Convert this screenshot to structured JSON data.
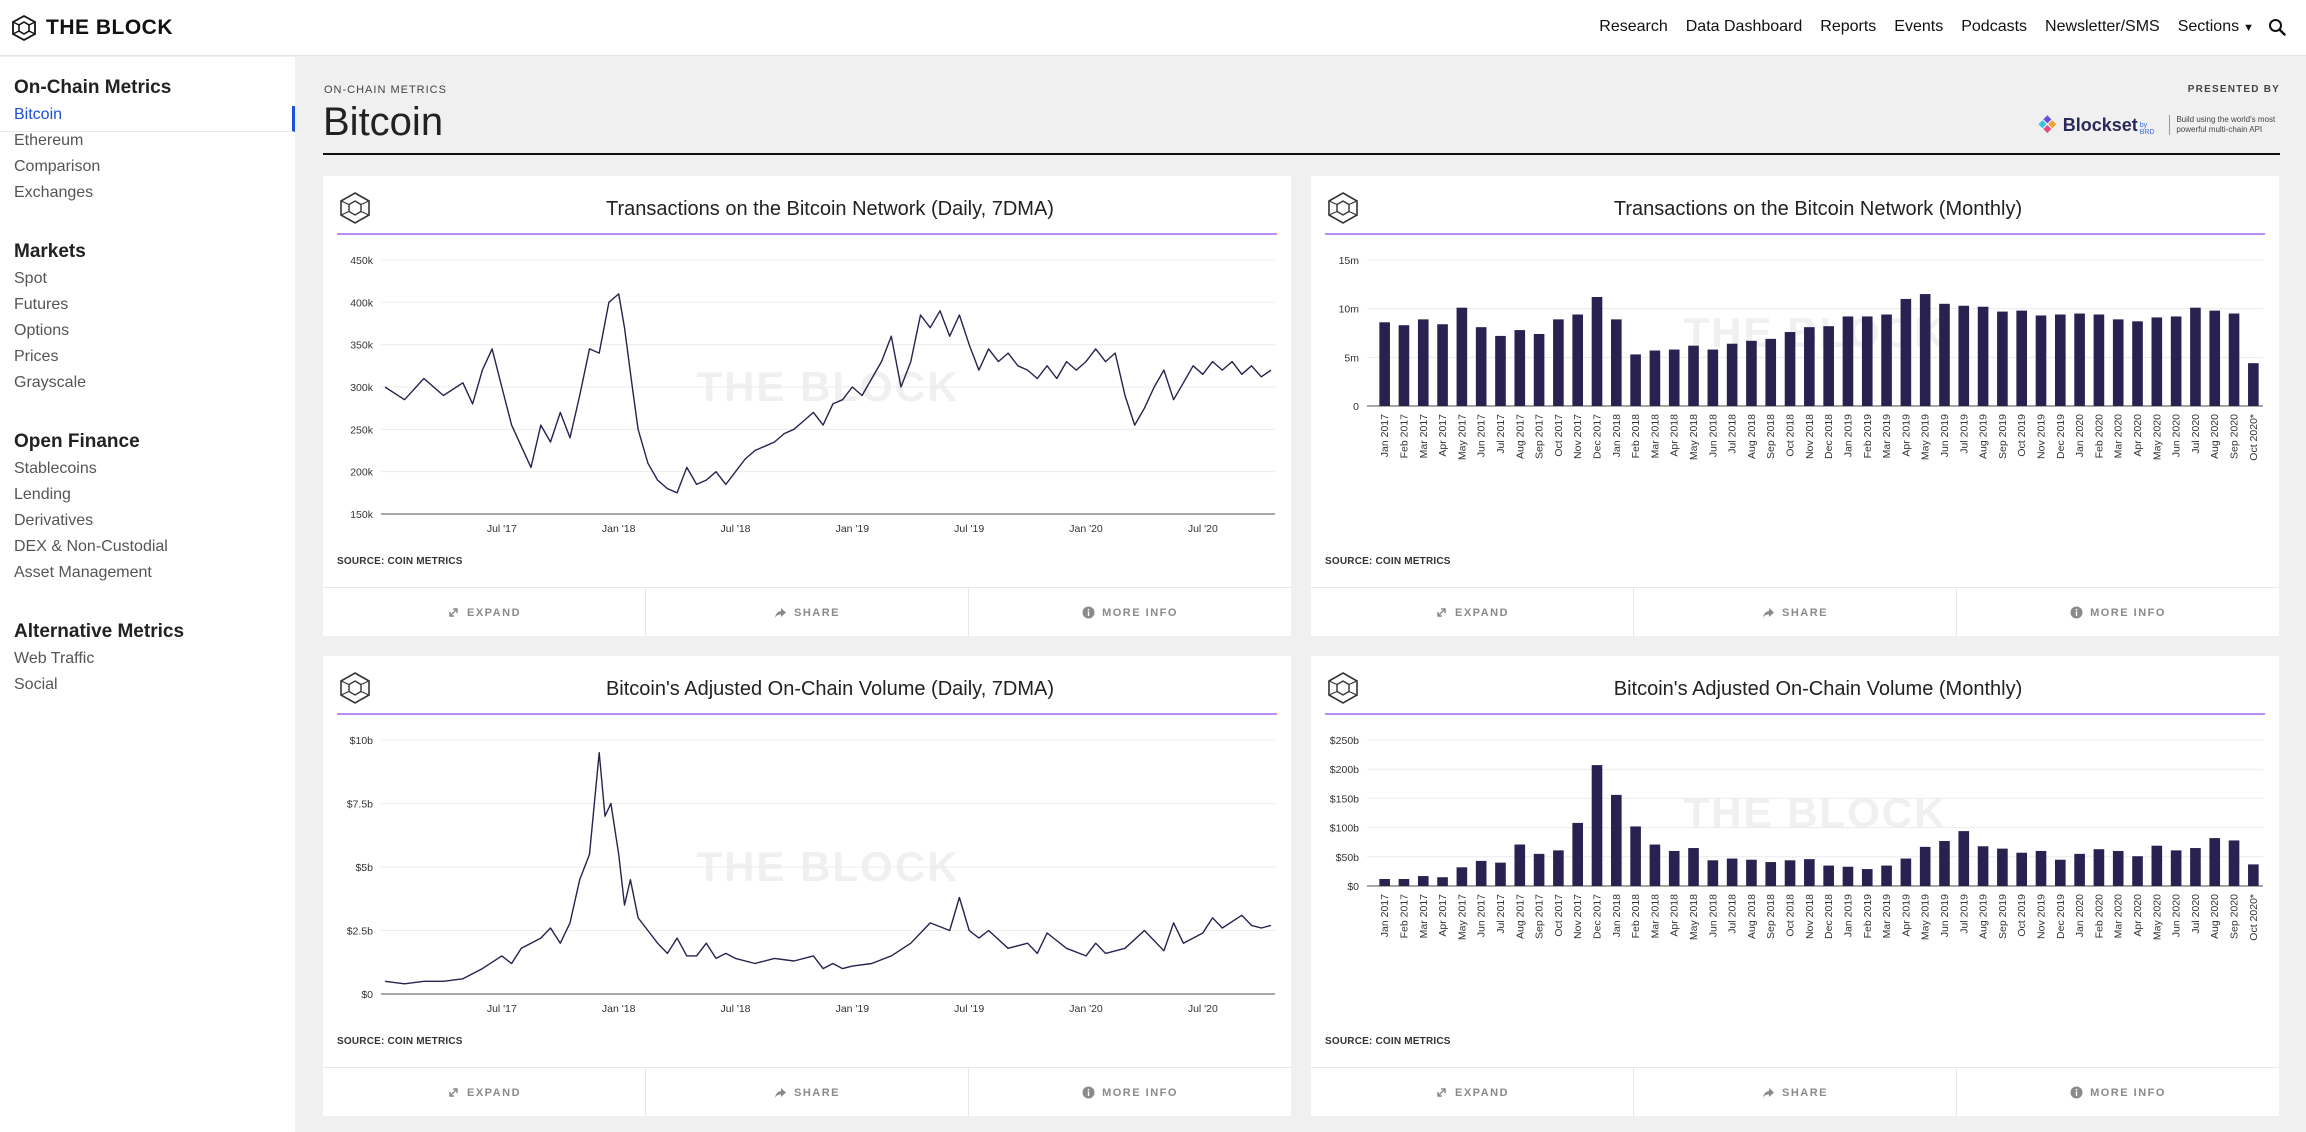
{
  "brand": {
    "name": "THE BLOCK",
    "icon": "cube-logo-icon"
  },
  "nav": {
    "items": [
      "Research",
      "Data Dashboard",
      "Reports",
      "Events",
      "Podcasts",
      "Newsletter/SMS",
      "Sections"
    ],
    "search_icon": "search-icon"
  },
  "sidebar": {
    "groups": [
      {
        "heading": "On-Chain Metrics",
        "items": [
          "Bitcoin",
          "Ethereum",
          "Comparison",
          "Exchanges"
        ]
      },
      {
        "heading": "Markets",
        "items": [
          "Spot",
          "Futures",
          "Options",
          "Prices",
          "Grayscale"
        ]
      },
      {
        "heading": "Open Finance",
        "items": [
          "Stablecoins",
          "Lending",
          "Derivatives",
          "DEX & Non-Custodial",
          "Asset Management"
        ]
      },
      {
        "heading": "Alternative Metrics",
        "items": [
          "Web Traffic",
          "Social"
        ]
      }
    ],
    "active_item": "Bitcoin",
    "accent_color": "#1d4fd8"
  },
  "header": {
    "kicker": "ON-CHAIN METRICS",
    "title": "Bitcoin",
    "presented_by": "PRESENTED BY",
    "sponsor": {
      "name": "Blockset",
      "sub": "by BRD",
      "tagline": "Build using the world's most powerful multi-chain API"
    }
  },
  "card_actions": [
    "EXPAND",
    "SHARE",
    "MORE INFO"
  ],
  "watermark": "THE BLOCK",
  "colors": {
    "series": "#27224f",
    "title_rule": "#b98ef2",
    "grid": "#ececec"
  },
  "chart_data": [
    {
      "type": "line",
      "title": "Transactions on the Bitcoin Network (Daily, 7DMA)",
      "source": "SOURCE: COIN METRICS",
      "ylim": [
        150000,
        450000
      ],
      "y_ticks": [
        150000,
        200000,
        250000,
        300000,
        350000,
        400000,
        450000
      ],
      "y_tick_labels": [
        "150k",
        "200k",
        "250k",
        "300k",
        "350k",
        "400k",
        "450k"
      ],
      "x_tick_labels": [
        "Jul '17",
        "Jan '18",
        "Jul '18",
        "Jan '19",
        "Jul '19",
        "Jan '20",
        "Jul '20"
      ],
      "x_start": "Jan '17",
      "x_end": "Oct '20",
      "x_tick_pos_months": [
        6,
        12,
        18,
        24,
        30,
        36,
        42
      ],
      "span_months": 45.5,
      "points": [
        [
          0,
          300000
        ],
        [
          1,
          285000
        ],
        [
          2,
          310000
        ],
        [
          3,
          290000
        ],
        [
          4,
          305000
        ],
        [
          4.5,
          280000
        ],
        [
          5,
          320000
        ],
        [
          5.5,
          345000
        ],
        [
          6,
          300000
        ],
        [
          6.5,
          255000
        ],
        [
          7,
          230000
        ],
        [
          7.5,
          205000
        ],
        [
          8,
          255000
        ],
        [
          8.5,
          235000
        ],
        [
          9,
          270000
        ],
        [
          9.5,
          240000
        ],
        [
          10,
          290000
        ],
        [
          10.5,
          345000
        ],
        [
          11,
          340000
        ],
        [
          11.5,
          400000
        ],
        [
          12,
          410000
        ],
        [
          12.3,
          370000
        ],
        [
          12.7,
          300000
        ],
        [
          13,
          250000
        ],
        [
          13.5,
          210000
        ],
        [
          14,
          190000
        ],
        [
          14.5,
          180000
        ],
        [
          15,
          175000
        ],
        [
          15.5,
          205000
        ],
        [
          16,
          185000
        ],
        [
          16.5,
          190000
        ],
        [
          17,
          200000
        ],
        [
          17.5,
          185000
        ],
        [
          18,
          200000
        ],
        [
          18.5,
          215000
        ],
        [
          19,
          225000
        ],
        [
          19.5,
          230000
        ],
        [
          20,
          235000
        ],
        [
          20.5,
          245000
        ],
        [
          21,
          250000
        ],
        [
          21.5,
          260000
        ],
        [
          22,
          270000
        ],
        [
          22.5,
          255000
        ],
        [
          23,
          280000
        ],
        [
          23.5,
          285000
        ],
        [
          24,
          300000
        ],
        [
          24.5,
          290000
        ],
        [
          25,
          310000
        ],
        [
          25.5,
          330000
        ],
        [
          26,
          360000
        ],
        [
          26.5,
          300000
        ],
        [
          27,
          330000
        ],
        [
          27.5,
          385000
        ],
        [
          28,
          370000
        ],
        [
          28.5,
          390000
        ],
        [
          29,
          360000
        ],
        [
          29.5,
          385000
        ],
        [
          30,
          350000
        ],
        [
          30.5,
          320000
        ],
        [
          31,
          345000
        ],
        [
          31.5,
          330000
        ],
        [
          32,
          340000
        ],
        [
          32.5,
          325000
        ],
        [
          33,
          320000
        ],
        [
          33.5,
          310000
        ],
        [
          34,
          325000
        ],
        [
          34.5,
          310000
        ],
        [
          35,
          330000
        ],
        [
          35.5,
          320000
        ],
        [
          36,
          330000
        ],
        [
          36.5,
          345000
        ],
        [
          37,
          330000
        ],
        [
          37.5,
          340000
        ],
        [
          38,
          290000
        ],
        [
          38.5,
          255000
        ],
        [
          39,
          275000
        ],
        [
          39.5,
          300000
        ],
        [
          40,
          320000
        ],
        [
          40.5,
          285000
        ],
        [
          41,
          305000
        ],
        [
          41.5,
          325000
        ],
        [
          42,
          315000
        ],
        [
          42.5,
          330000
        ],
        [
          43,
          320000
        ],
        [
          43.5,
          330000
        ],
        [
          44,
          315000
        ],
        [
          44.5,
          325000
        ],
        [
          45,
          312000
        ],
        [
          45.5,
          320000
        ]
      ]
    },
    {
      "type": "bar",
      "title": "Transactions on the Bitcoin Network (Monthly)",
      "source": "SOURCE: COIN METRICS",
      "ylim": [
        0,
        15000000
      ],
      "y_ticks": [
        0,
        5000000,
        10000000,
        15000000
      ],
      "y_tick_labels": [
        "0",
        "5m",
        "10m",
        "15m"
      ],
      "categories": [
        "Jan 2017",
        "Feb 2017",
        "Mar 2017",
        "Apr 2017",
        "May 2017",
        "Jun 2017",
        "Jul 2017",
        "Aug 2017",
        "Sep 2017",
        "Oct 2017",
        "Nov 2017",
        "Dec 2017",
        "Jan 2018",
        "Feb 2018",
        "Mar 2018",
        "Apr 2018",
        "May 2018",
        "Jun 2018",
        "Jul 2018",
        "Aug 2018",
        "Sep 2018",
        "Oct 2018",
        "Nov 2018",
        "Dec 2018",
        "Jan 2019",
        "Feb 2019",
        "Mar 2019",
        "Apr 2019",
        "May 2019",
        "Jun 2019",
        "Jul 2019",
        "Aug 2019",
        "Sep 2019",
        "Oct 2019",
        "Nov 2019",
        "Dec 2019",
        "Jan 2020",
        "Feb 2020",
        "Mar 2020",
        "Apr 2020",
        "May 2020",
        "Jun 2020",
        "Jul 2020",
        "Aug 2020",
        "Sep 2020",
        "Oct 2020*"
      ],
      "values": [
        8600000,
        8300000,
        8900000,
        8400000,
        10100000,
        8100000,
        7200000,
        7800000,
        7400000,
        8900000,
        9400000,
        11200000,
        8900000,
        5300000,
        5700000,
        5800000,
        6200000,
        5800000,
        6400000,
        6700000,
        6900000,
        7600000,
        8100000,
        8200000,
        9200000,
        9200000,
        9400000,
        11000000,
        11500000,
        10500000,
        10300000,
        10200000,
        9700000,
        9800000,
        9300000,
        9400000,
        9500000,
        9400000,
        8900000,
        8700000,
        9100000,
        9200000,
        10100000,
        9800000,
        9500000,
        4400000
      ]
    },
    {
      "type": "line",
      "title": "Bitcoin's Adjusted On-Chain Volume (Daily, 7DMA)",
      "source": "SOURCE: COIN METRICS",
      "ylim": [
        0,
        10
      ],
      "y_ticks": [
        0,
        2.5,
        5,
        7.5,
        10
      ],
      "y_tick_labels": [
        "$0",
        "$2.5b",
        "$5b",
        "$7.5b",
        "$10b"
      ],
      "unit": "billions USD",
      "x_tick_labels": [
        "Jul '17",
        "Jan '18",
        "Jul '18",
        "Jan '19",
        "Jul '19",
        "Jan '20",
        "Jul '20"
      ],
      "x_start": "Jan '17",
      "x_end": "Oct '20",
      "x_tick_pos_months": [
        6,
        12,
        18,
        24,
        30,
        36,
        42
      ],
      "span_months": 45.5,
      "points": [
        [
          0,
          0.5
        ],
        [
          1,
          0.4
        ],
        [
          2,
          0.5
        ],
        [
          3,
          0.5
        ],
        [
          4,
          0.6
        ],
        [
          5,
          1.0
        ],
        [
          6,
          1.5
        ],
        [
          6.5,
          1.2
        ],
        [
          7,
          1.8
        ],
        [
          7.5,
          2.0
        ],
        [
          8,
          2.2
        ],
        [
          8.5,
          2.6
        ],
        [
          9,
          2.0
        ],
        [
          9.5,
          2.8
        ],
        [
          10,
          4.5
        ],
        [
          10.5,
          5.5
        ],
        [
          11,
          9.5
        ],
        [
          11.3,
          7.0
        ],
        [
          11.6,
          7.5
        ],
        [
          12,
          5.5
        ],
        [
          12.3,
          3.5
        ],
        [
          12.6,
          4.5
        ],
        [
          13,
          3.0
        ],
        [
          13.5,
          2.5
        ],
        [
          14,
          2.0
        ],
        [
          14.5,
          1.6
        ],
        [
          15,
          2.2
        ],
        [
          15.5,
          1.5
        ],
        [
          16,
          1.5
        ],
        [
          16.5,
          2.0
        ],
        [
          17,
          1.4
        ],
        [
          17.5,
          1.6
        ],
        [
          18,
          1.4
        ],
        [
          19,
          1.2
        ],
        [
          20,
          1.4
        ],
        [
          21,
          1.3
        ],
        [
          22,
          1.5
        ],
        [
          22.5,
          1.0
        ],
        [
          23,
          1.2
        ],
        [
          23.5,
          1.0
        ],
        [
          24,
          1.1
        ],
        [
          25,
          1.2
        ],
        [
          26,
          1.5
        ],
        [
          27,
          2.0
        ],
        [
          28,
          2.8
        ],
        [
          29,
          2.5
        ],
        [
          29.5,
          3.8
        ],
        [
          30,
          2.5
        ],
        [
          30.5,
          2.2
        ],
        [
          31,
          2.5
        ],
        [
          32,
          1.8
        ],
        [
          33,
          2.0
        ],
        [
          33.5,
          1.6
        ],
        [
          34,
          2.4
        ],
        [
          35,
          1.8
        ],
        [
          36,
          1.5
        ],
        [
          36.5,
          2.0
        ],
        [
          37,
          1.6
        ],
        [
          38,
          1.8
        ],
        [
          39,
          2.5
        ],
        [
          40,
          1.7
        ],
        [
          40.5,
          2.8
        ],
        [
          41,
          2.0
        ],
        [
          42,
          2.4
        ],
        [
          42.5,
          3.0
        ],
        [
          43,
          2.6
        ],
        [
          44,
          3.1
        ],
        [
          44.5,
          2.7
        ],
        [
          45,
          2.6
        ],
        [
          45.5,
          2.7
        ]
      ]
    },
    {
      "type": "bar",
      "title": "Bitcoin's Adjusted On-Chain Volume (Monthly)",
      "source": "SOURCE: COIN METRICS",
      "ylim": [
        0,
        250
      ],
      "y_ticks": [
        0,
        50,
        100,
        150,
        200,
        250
      ],
      "y_tick_labels": [
        "$0",
        "$50b",
        "$100b",
        "$150b",
        "$200b",
        "$250b"
      ],
      "unit": "billions USD",
      "categories": [
        "Jan 2017",
        "Feb 2017",
        "Mar 2017",
        "Apr 2017",
        "May 2017",
        "Jun 2017",
        "Jul 2017",
        "Aug 2017",
        "Sep 2017",
        "Oct 2017",
        "Nov 2017",
        "Dec 2017",
        "Jan 2018",
        "Feb 2018",
        "Mar 2018",
        "Apr 2018",
        "May 2018",
        "Jun 2018",
        "Jul 2018",
        "Aug 2018",
        "Sep 2018",
        "Oct 2018",
        "Nov 2018",
        "Dec 2018",
        "Jan 2019",
        "Feb 2019",
        "Mar 2019",
        "Apr 2019",
        "May 2019",
        "Jun 2019",
        "Jul 2019",
        "Aug 2019",
        "Sep 2019",
        "Oct 2019",
        "Nov 2019",
        "Dec 2019",
        "Jan 2020",
        "Feb 2020",
        "Mar 2020",
        "Apr 2020",
        "May 2020",
        "Jun 2020",
        "Jul 2020",
        "Aug 2020",
        "Sep 2020",
        "Oct 2020*"
      ],
      "values": [
        12,
        12,
        17,
        15,
        32,
        43,
        40,
        71,
        55,
        61,
        108,
        207,
        156,
        102,
        71,
        60,
        65,
        44,
        47,
        45,
        41,
        44,
        46,
        35,
        33,
        29,
        35,
        47,
        67,
        77,
        94,
        68,
        64,
        57,
        60,
        45,
        55,
        63,
        60,
        51,
        69,
        61,
        65,
        82,
        78,
        37
      ]
    }
  ]
}
